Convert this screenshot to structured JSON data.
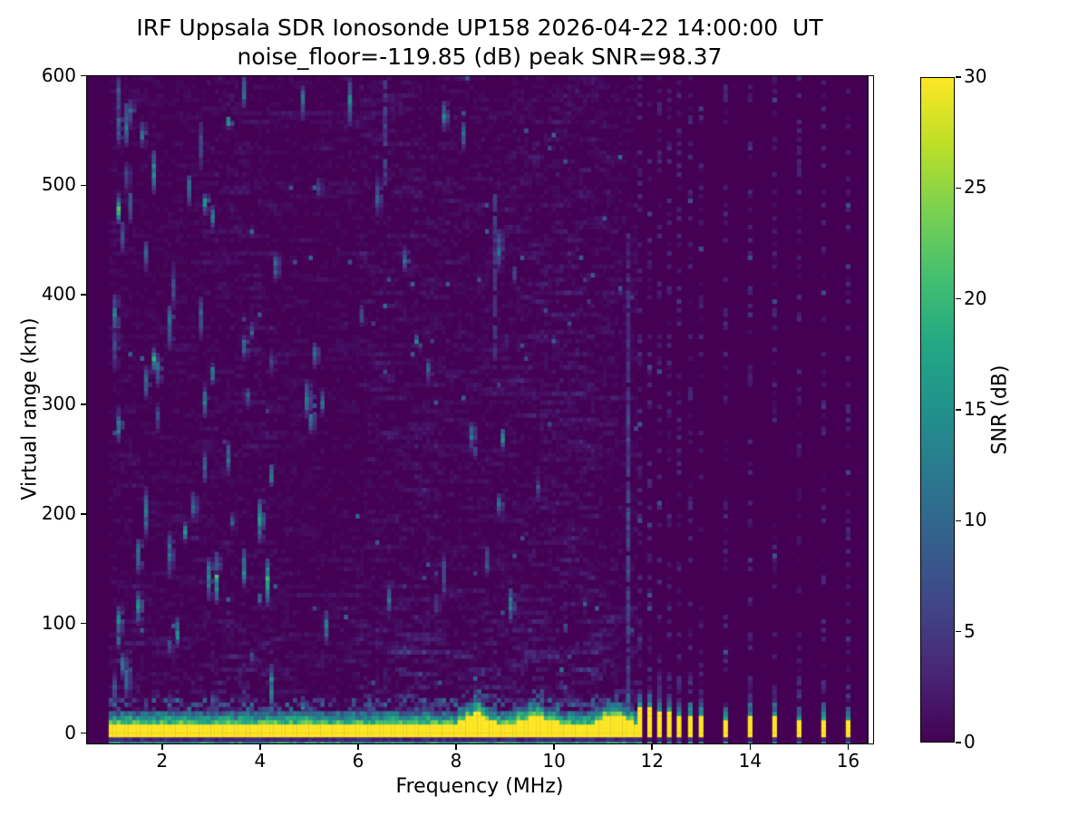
{
  "chart_data": {
    "type": "heatmap",
    "title": "IRF Uppsala SDR Ionosonde UP158 2026-04-22 14:00:00  UT",
    "subtitle": "noise_floor=-119.85 (dB) peak SNR=98.37",
    "station": "UP158",
    "timestamp": "2026-04-22 14:00:00 UT",
    "noise_floor_db": -119.85,
    "peak_snr_db": 98.37,
    "xlabel": "Frequency (MHz)",
    "ylabel": "Virtual range (km)",
    "colorbar_label": "SNR (dB)",
    "xlim": [
      0.45,
      16.51
    ],
    "ylim": [
      -9.5,
      600.5
    ],
    "xticks": [
      2,
      4,
      6,
      8,
      10,
      12,
      14,
      16
    ],
    "yticks": [
      0,
      100,
      200,
      300,
      400,
      500,
      600
    ],
    "colorbar_ticks": [
      0,
      5,
      10,
      15,
      20,
      25,
      30
    ],
    "clim": [
      0,
      30
    ],
    "colormap": "viridis",
    "colormap_stops": [
      [
        0.0,
        "#440154"
      ],
      [
        0.1,
        "#482475"
      ],
      [
        0.2,
        "#414487"
      ],
      [
        0.3,
        "#355f8d"
      ],
      [
        0.4,
        "#2a788e"
      ],
      [
        0.5,
        "#21918c"
      ],
      [
        0.6,
        "#22a884"
      ],
      [
        0.7,
        "#44bf70"
      ],
      [
        0.8,
        "#7ad151"
      ],
      [
        0.9,
        "#bddf26"
      ],
      [
        1.0,
        "#fde725"
      ]
    ],
    "sweep": {
      "continuous_mhz": [
        0.91,
        11.65
      ],
      "freq_step_mhz": 0.08,
      "discrete_mhz": [
        11.75,
        11.95,
        12.15,
        12.35,
        12.55,
        12.78,
        13.0,
        13.5,
        14.0,
        14.5,
        15.0,
        15.5,
        16.0
      ]
    },
    "ground_echo_band": {
      "freq_range_mhz": [
        0.91,
        11.65
      ],
      "range_km": [
        -6,
        8
      ],
      "snr_db": 30,
      "base_top_km": 6,
      "bumps": [
        {
          "freq_mhz": 8.35,
          "amp_km": 11,
          "width_mhz": 0.28
        },
        {
          "freq_mhz": 9.6,
          "amp_km": 7,
          "width_mhz": 0.35
        },
        {
          "freq_mhz": 11.2,
          "amp_km": 8,
          "width_mhz": 0.32
        }
      ]
    },
    "rfi_stripes": [
      {
        "freq_mhz": 11.47,
        "range_km": [
          -6,
          300
        ],
        "snr_db": 6,
        "fill": 0.95
      },
      {
        "freq_mhz": 11.47,
        "range_km": [
          300,
          455
        ],
        "snr_db": 4,
        "fill": 0.8
      },
      {
        "freq_mhz": 6.52,
        "range_km": [
          500,
          600
        ],
        "snr_db": 5,
        "fill": 0.7
      },
      {
        "freq_mhz": 8.78,
        "range_km": [
          340,
          490
        ],
        "snr_db": 4.5,
        "fill": 0.7
      }
    ],
    "notable_echoes": [
      [
        1.22,
        555,
        40,
        16
      ],
      [
        1.32,
        480,
        30,
        14
      ],
      [
        1.55,
        545,
        22,
        13
      ],
      [
        1.45,
        160,
        30,
        17
      ],
      [
        1.62,
        200,
        45,
        15
      ],
      [
        1.9,
        330,
        30,
        13
      ],
      [
        2.15,
        370,
        40,
        14
      ],
      [
        2.3,
        90,
        25,
        18
      ],
      [
        2.55,
        495,
        28,
        15
      ],
      [
        2.6,
        205,
        25,
        15
      ],
      [
        3.0,
        470,
        24,
        13
      ],
      [
        3.05,
        140,
        45,
        22
      ],
      [
        3.3,
        250,
        30,
        13
      ],
      [
        3.6,
        585,
        28,
        16
      ],
      [
        3.65,
        150,
        35,
        20
      ],
      [
        4.3,
        425,
        28,
        12
      ],
      [
        4.85,
        575,
        32,
        14
      ],
      [
        5.2,
        300,
        24,
        12
      ],
      [
        5.35,
        95,
        30,
        15
      ],
      [
        6.5,
        555,
        28,
        14
      ],
      [
        6.55,
        120,
        25,
        13
      ],
      [
        7.4,
        330,
        24,
        11
      ],
      [
        8.3,
        270,
        28,
        13
      ],
      [
        8.8,
        440,
        40,
        12
      ]
    ],
    "texture": {
      "seed": 158,
      "random_echo_count": 70,
      "range_gate_km": 4,
      "background_snr_db": 0
    }
  }
}
